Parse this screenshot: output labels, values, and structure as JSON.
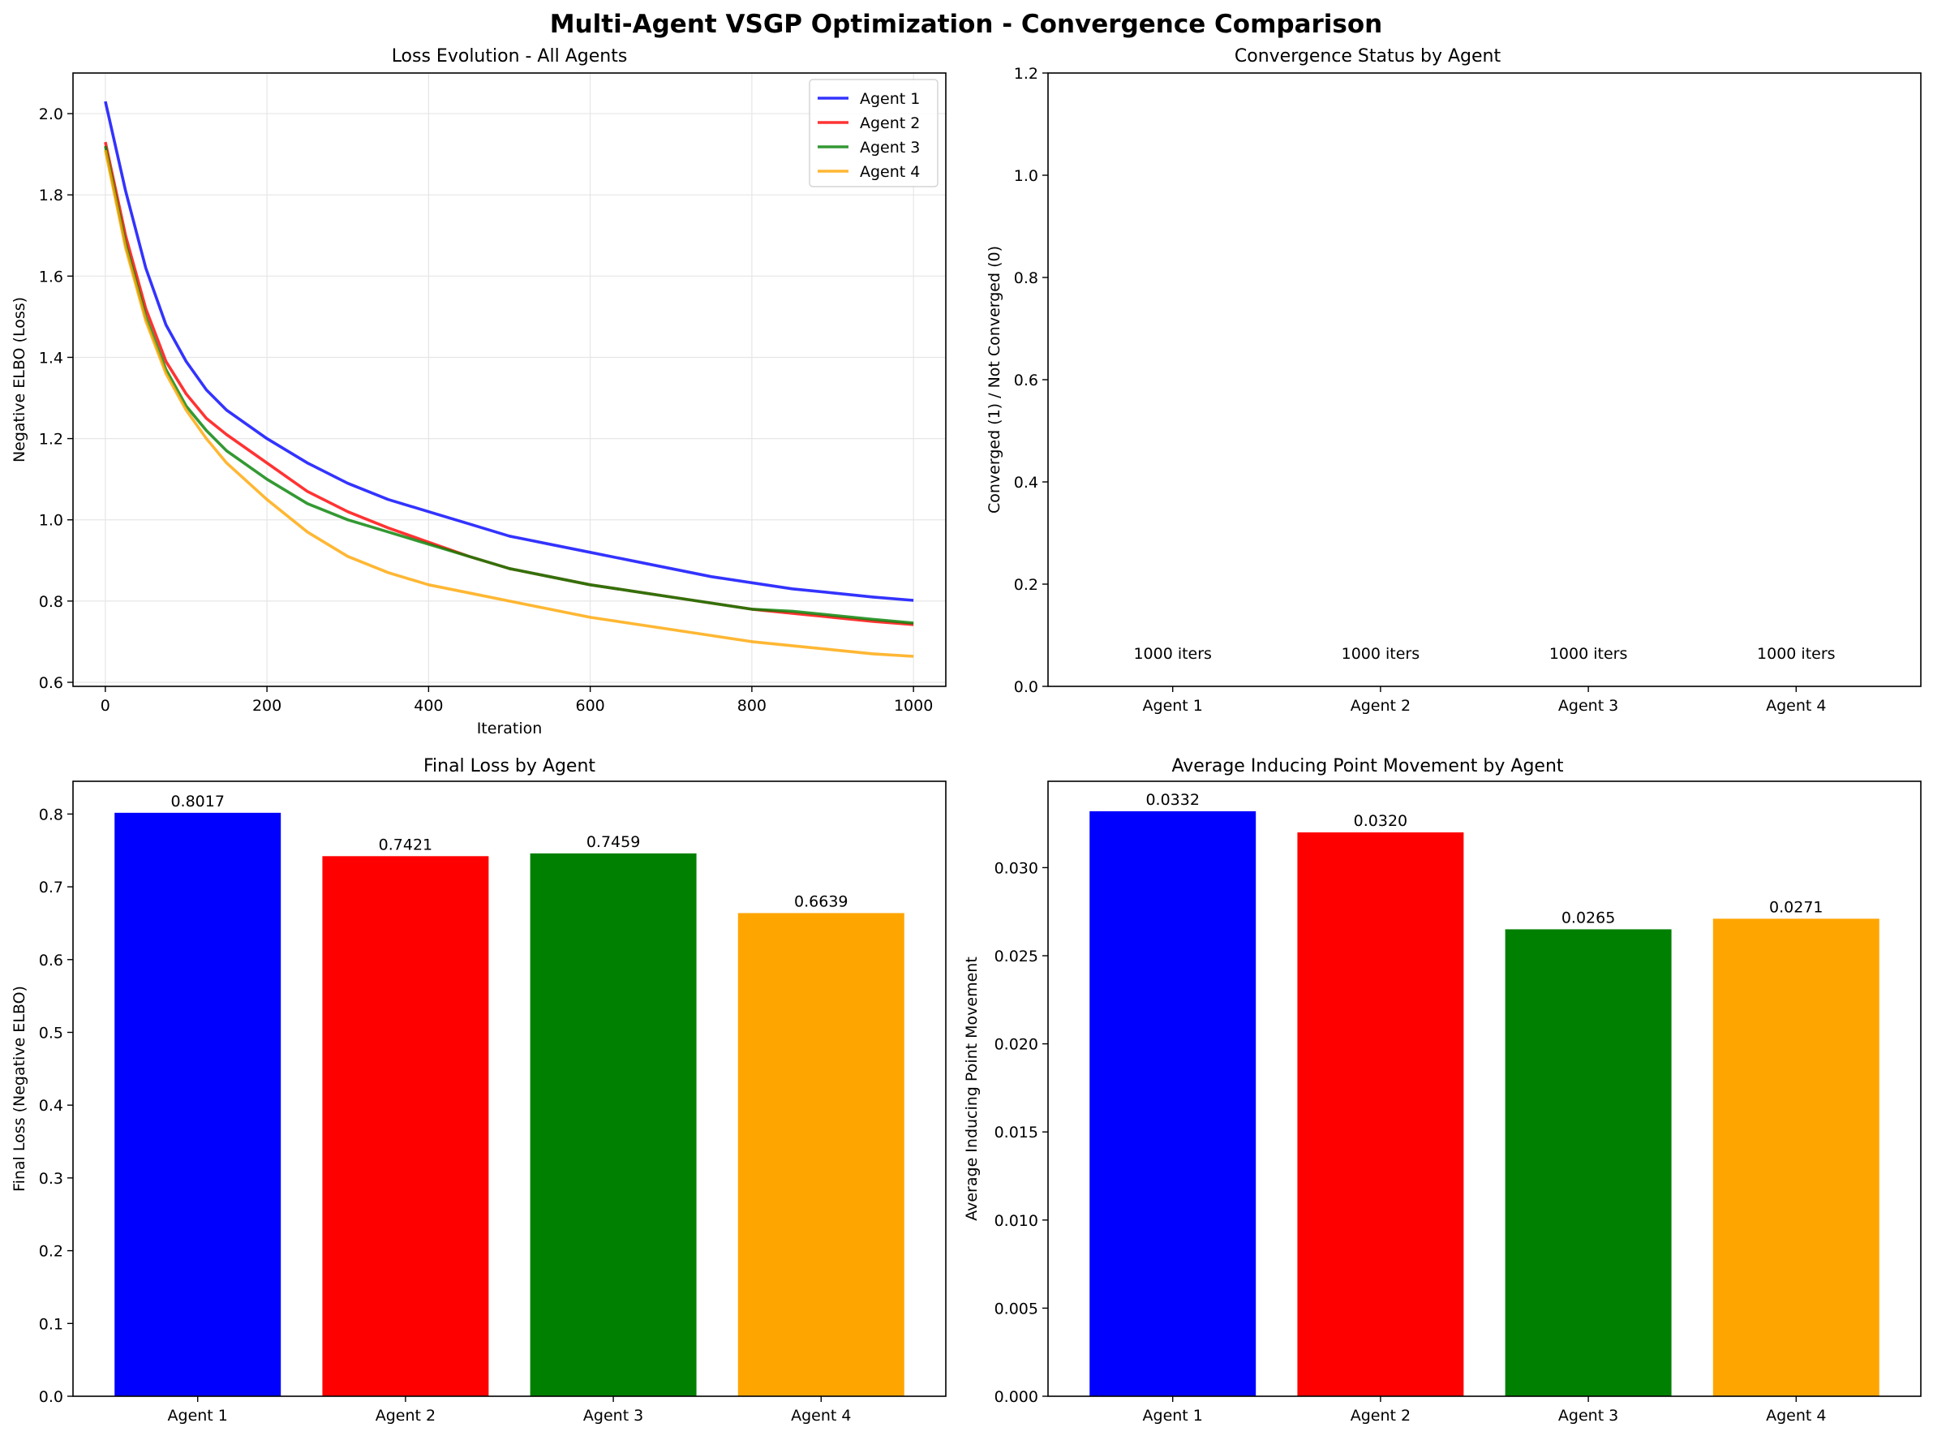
{
  "figure": {
    "suptitle": "Multi-Agent VSGP Optimization - Convergence Comparison"
  },
  "chart_data": [
    {
      "type": "line",
      "title": "Loss Evolution - All Agents",
      "xlabel": "Iteration",
      "ylabel": "Negative ELBO (Loss)",
      "xlim": [
        -40,
        1040
      ],
      "ylim": [
        0.59,
        2.1
      ],
      "xticks": [
        0,
        200,
        400,
        600,
        800,
        1000
      ],
      "yticks": [
        0.6,
        0.8,
        1.0,
        1.2,
        1.4,
        1.6,
        1.8,
        2.0
      ],
      "ytick_labels": [
        "0.6",
        "0.8",
        "1.0",
        "1.2",
        "1.4",
        "1.6",
        "1.8",
        "2.0"
      ],
      "grid": true,
      "legend": "top-right",
      "x": [
        0,
        25,
        50,
        75,
        100,
        125,
        150,
        200,
        250,
        300,
        350,
        400,
        450,
        500,
        550,
        600,
        650,
        700,
        750,
        800,
        850,
        900,
        950,
        1000
      ],
      "series": [
        {
          "name": "Agent 1",
          "color": "#0000ff",
          "values": [
            2.03,
            1.81,
            1.62,
            1.48,
            1.39,
            1.32,
            1.27,
            1.2,
            1.14,
            1.09,
            1.05,
            1.02,
            0.99,
            0.96,
            0.94,
            0.92,
            0.9,
            0.88,
            0.86,
            0.845,
            0.83,
            0.82,
            0.81,
            0.8017
          ]
        },
        {
          "name": "Agent 2",
          "color": "#ff0000",
          "values": [
            1.93,
            1.7,
            1.52,
            1.39,
            1.31,
            1.25,
            1.21,
            1.14,
            1.07,
            1.02,
            0.98,
            0.945,
            0.91,
            0.88,
            0.86,
            0.84,
            0.825,
            0.81,
            0.795,
            0.78,
            0.77,
            0.76,
            0.75,
            0.7421
          ]
        },
        {
          "name": "Agent 3",
          "color": "#008000",
          "values": [
            1.92,
            1.68,
            1.5,
            1.37,
            1.28,
            1.22,
            1.17,
            1.1,
            1.04,
            1.0,
            0.97,
            0.94,
            0.91,
            0.88,
            0.86,
            0.84,
            0.825,
            0.81,
            0.795,
            0.78,
            0.775,
            0.765,
            0.755,
            0.7459
          ]
        },
        {
          "name": "Agent 4",
          "color": "#ffa500",
          "values": [
            1.91,
            1.67,
            1.49,
            1.36,
            1.27,
            1.2,
            1.14,
            1.05,
            0.97,
            0.91,
            0.87,
            0.84,
            0.82,
            0.8,
            0.78,
            0.76,
            0.745,
            0.73,
            0.715,
            0.7,
            0.69,
            0.68,
            0.67,
            0.6639
          ]
        }
      ]
    },
    {
      "type": "bar",
      "title": "Convergence Status by Agent",
      "xlabel": "",
      "ylabel": "Converged (1) / Not Converged (0)",
      "categories": [
        "Agent 1",
        "Agent 2",
        "Agent 3",
        "Agent 4"
      ],
      "values": [
        0,
        0,
        0,
        0
      ],
      "annotations": [
        "1000 iters",
        "1000 iters",
        "1000 iters",
        "1000 iters"
      ],
      "annotation_y": 0.065,
      "ylim": [
        0,
        1.2
      ],
      "yticks": [
        0.0,
        0.2,
        0.4,
        0.6,
        0.8,
        1.0,
        1.2
      ],
      "ytick_labels": [
        "0.0",
        "0.2",
        "0.4",
        "0.6",
        "0.8",
        "1.0",
        "1.2"
      ],
      "grid": false
    },
    {
      "type": "bar",
      "title": "Final Loss by Agent",
      "xlabel": "",
      "ylabel": "Final Loss (Negative ELBO)",
      "categories": [
        "Agent 1",
        "Agent 2",
        "Agent 3",
        "Agent 4"
      ],
      "values": [
        0.8017,
        0.7421,
        0.7459,
        0.6639
      ],
      "value_labels": [
        "0.8017",
        "0.7421",
        "0.7459",
        "0.6639"
      ],
      "colors": [
        "#0000ff",
        "#ff0000",
        "#008000",
        "#ffa500"
      ],
      "ylim": [
        0,
        0.845
      ],
      "yticks": [
        0.0,
        0.1,
        0.2,
        0.3,
        0.4,
        0.5,
        0.6,
        0.7,
        0.8
      ],
      "ytick_labels": [
        "0.0",
        "0.1",
        "0.2",
        "0.3",
        "0.4",
        "0.5",
        "0.6",
        "0.7",
        "0.8"
      ],
      "grid": false
    },
    {
      "type": "bar",
      "title": "Average Inducing Point Movement by Agent",
      "xlabel": "",
      "ylabel": "Average Inducing Point Movement",
      "categories": [
        "Agent 1",
        "Agent 2",
        "Agent 3",
        "Agent 4"
      ],
      "values": [
        0.0332,
        0.032,
        0.0265,
        0.0271
      ],
      "value_labels": [
        "0.0332",
        "0.0320",
        "0.0265",
        "0.0271"
      ],
      "colors": [
        "#0000ff",
        "#ff0000",
        "#008000",
        "#ffa500"
      ],
      "ylim": [
        0,
        0.0349
      ],
      "yticks": [
        0.0,
        0.005,
        0.01,
        0.015,
        0.02,
        0.025,
        0.03
      ],
      "ytick_labels": [
        "0.000",
        "0.005",
        "0.010",
        "0.015",
        "0.020",
        "0.025",
        "0.030"
      ],
      "grid": false
    }
  ]
}
